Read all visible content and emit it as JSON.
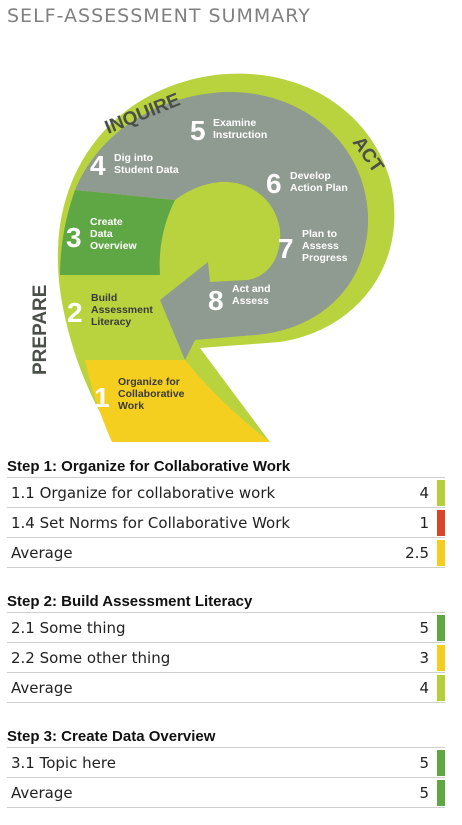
{
  "page_title": "SELF-ASSESSMENT SUMMARY",
  "cycle": {
    "phases": {
      "inquire": "INQUIRE",
      "act": "ACT",
      "prepare": "PREPARE"
    },
    "steps": [
      {
        "num": "1",
        "lines": [
          "Organize for",
          "Collaborative",
          "Work"
        ]
      },
      {
        "num": "2",
        "lines": [
          "Build",
          "Assessment",
          "Literacy"
        ]
      },
      {
        "num": "3",
        "lines": [
          "Create",
          "Data",
          "Overview"
        ]
      },
      {
        "num": "4",
        "lines": [
          "Dig into",
          "Student Data"
        ]
      },
      {
        "num": "5",
        "lines": [
          "Examine",
          "Instruction"
        ]
      },
      {
        "num": "6",
        "lines": [
          "Develop",
          "Action Plan"
        ]
      },
      {
        "num": "7",
        "lines": [
          "Plan to",
          "Assess",
          "Progress"
        ]
      },
      {
        "num": "8",
        "lines": [
          "Act and",
          "Assess"
        ]
      }
    ],
    "colors": {
      "yellow": "#f5cf1f",
      "lime": "#b9d33f",
      "green": "#5fa645",
      "gray": "#8f9a90"
    }
  },
  "status_colors": {
    "green": "#5fa645",
    "lime": "#b5cf3b",
    "yellow": "#f5cd1e",
    "red": "#d9442b"
  },
  "steps": [
    {
      "title": "Step 1: Organize for Collaborative Work",
      "rows": [
        {
          "label": "1.1 Organize for collaborative work",
          "value": "4",
          "color": "#b5cf3b"
        },
        {
          "label": "1.4 Set Norms for Collaborative Work",
          "value": "1",
          "color": "#d9442b"
        },
        {
          "label": "Average",
          "value": "2.5",
          "color": "#f5cd1e"
        }
      ]
    },
    {
      "title": "Step 2: Build Assessment Literacy",
      "rows": [
        {
          "label": "2.1 Some thing",
          "value": "5",
          "color": "#5fa645"
        },
        {
          "label": "2.2 Some other thing",
          "value": "3",
          "color": "#f5cd1e"
        },
        {
          "label": "Average",
          "value": "4",
          "color": "#b5cf3b"
        }
      ]
    },
    {
      "title": "Step 3: Create Data Overview",
      "rows": [
        {
          "label": "3.1 Topic here",
          "value": "5",
          "color": "#5fa645"
        },
        {
          "label": "Average",
          "value": "5",
          "color": "#5fa645"
        }
      ]
    }
  ]
}
